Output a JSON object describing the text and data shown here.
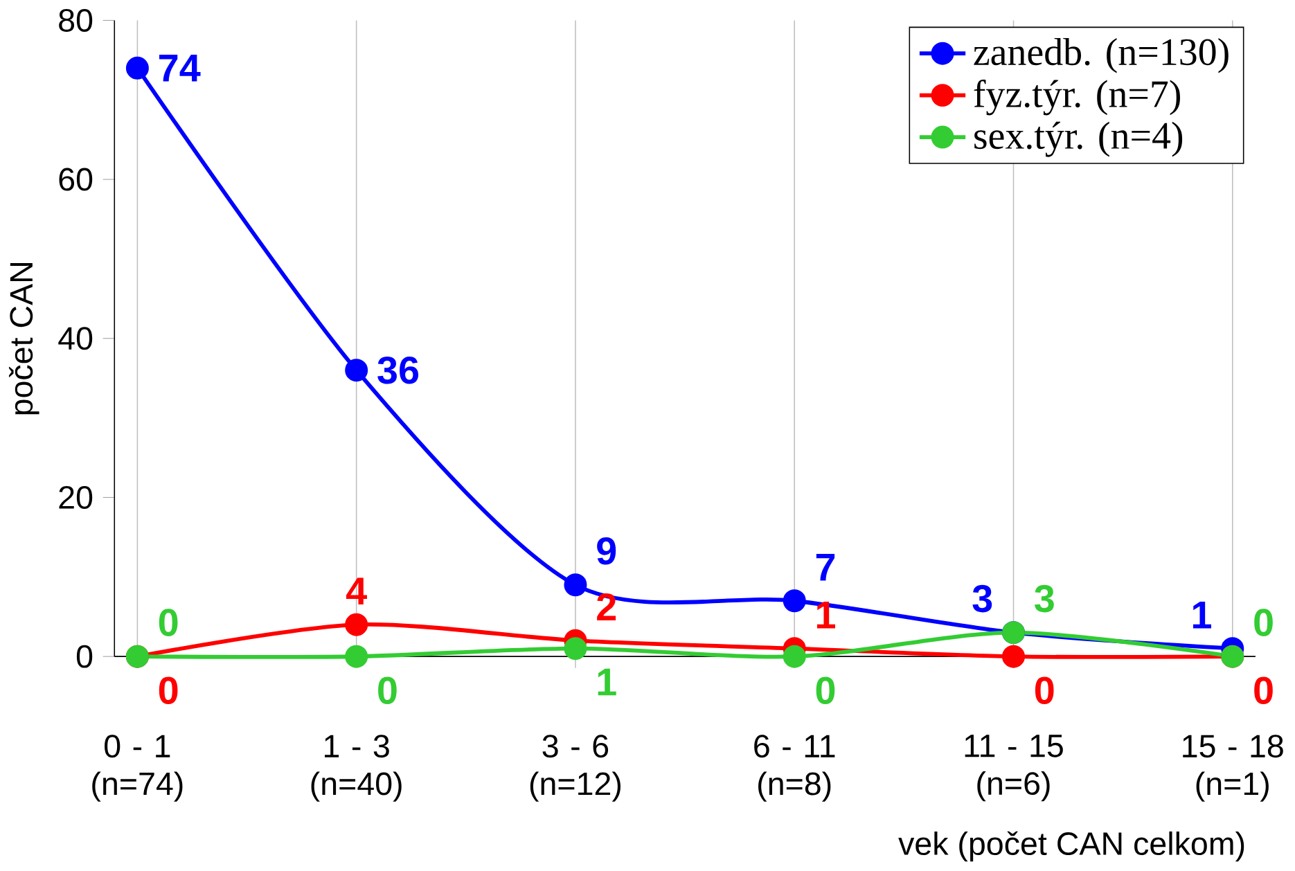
{
  "chart_data": {
    "type": "line",
    "xlabel": "vek (počet CAN celkom)",
    "ylabel": "počet CAN",
    "categories": [
      "0 - 1 (n=74)",
      "1 - 3 (n=40)",
      "3 - 6 (n=12)",
      "6 - 11 (n=8)",
      "11 - 15 (n=6)",
      "15 - 18 (n=1)"
    ],
    "series": [
      {
        "name": "zanedb. (n=130)",
        "color": "#0000ff",
        "values": [
          74,
          36,
          9,
          7,
          3,
          1
        ]
      },
      {
        "name": "fyz.týr. (n=7)",
        "color": "#ff0000",
        "values": [
          0,
          4,
          2,
          1,
          0,
          0
        ]
      },
      {
        "name": "sex.týr. (n=4)",
        "color": "#33cc33",
        "values": [
          0,
          0,
          1,
          0,
          3,
          0
        ]
      }
    ],
    "ylim": [
      0,
      80
    ],
    "yticks": [
      0,
      20,
      40,
      60,
      80
    ],
    "grid": "x",
    "legend": "top right",
    "marker": "circle",
    "line_style": "solid",
    "data_labels": true
  }
}
